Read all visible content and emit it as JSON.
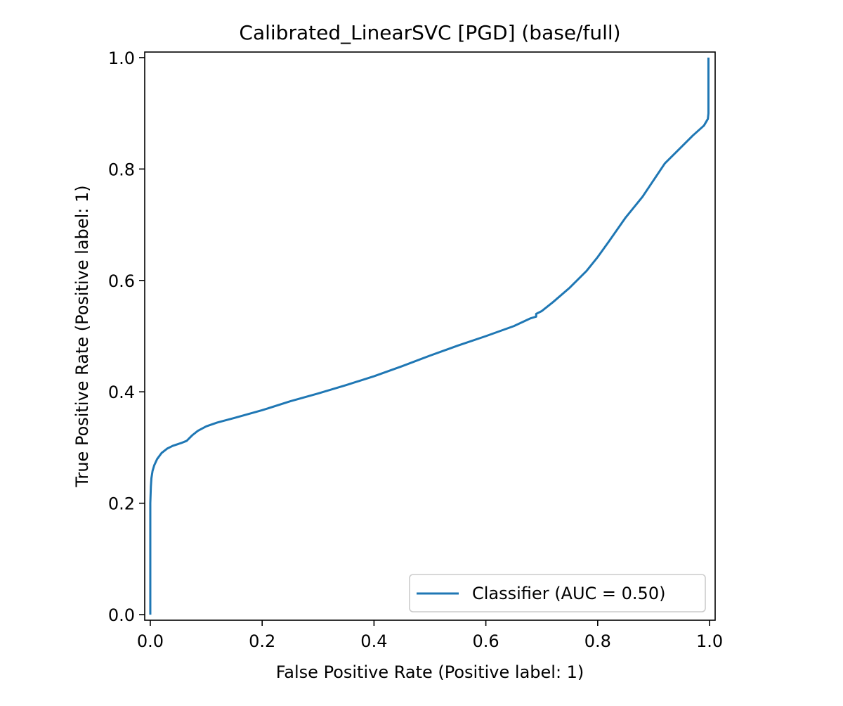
{
  "chart_data": {
    "type": "line",
    "title": "Calibrated_LinearSVC [PGD] (base/full)",
    "xlabel": "False Positive Rate (Positive label: 1)",
    "ylabel": "True Positive Rate (Positive label: 1)",
    "xlim": [
      -0.01,
      1.01
    ],
    "ylim": [
      -0.01,
      1.01
    ],
    "xticks": [
      0.0,
      0.2,
      0.4,
      0.6,
      0.8,
      1.0
    ],
    "xtick_labels": [
      "0.0",
      "0.2",
      "0.4",
      "0.6",
      "0.8",
      "1.0"
    ],
    "yticks": [
      0.0,
      0.2,
      0.4,
      0.6,
      0.8,
      1.0
    ],
    "ytick_labels": [
      "0.0",
      "0.2",
      "0.4",
      "0.6",
      "0.8",
      "1.0"
    ],
    "grid": false,
    "legend_position": "lower-right",
    "series": [
      {
        "name": "Classifier (AUC = 0.50)",
        "color": "#1f77b4",
        "x": [
          0.0,
          0.0,
          0.001,
          0.002,
          0.004,
          0.007,
          0.012,
          0.02,
          0.03,
          0.04,
          0.055,
          0.065,
          0.075,
          0.085,
          0.1,
          0.12,
          0.15,
          0.2,
          0.25,
          0.3,
          0.35,
          0.4,
          0.45,
          0.5,
          0.55,
          0.6,
          0.65,
          0.68,
          0.69,
          0.69,
          0.7,
          0.72,
          0.75,
          0.78,
          0.8,
          0.82,
          0.85,
          0.88,
          0.9,
          0.92,
          0.95,
          0.97,
          0.99,
          0.997,
          0.998,
          0.998
        ],
        "y": [
          0.0,
          0.2,
          0.23,
          0.245,
          0.258,
          0.268,
          0.279,
          0.29,
          0.298,
          0.303,
          0.308,
          0.312,
          0.322,
          0.33,
          0.338,
          0.345,
          0.353,
          0.367,
          0.383,
          0.397,
          0.412,
          0.428,
          0.446,
          0.465,
          0.483,
          0.5,
          0.518,
          0.532,
          0.535,
          0.54,
          0.545,
          0.561,
          0.587,
          0.617,
          0.642,
          0.67,
          0.713,
          0.75,
          0.78,
          0.81,
          0.84,
          0.86,
          0.878,
          0.89,
          0.9,
          1.0
        ]
      }
    ]
  }
}
